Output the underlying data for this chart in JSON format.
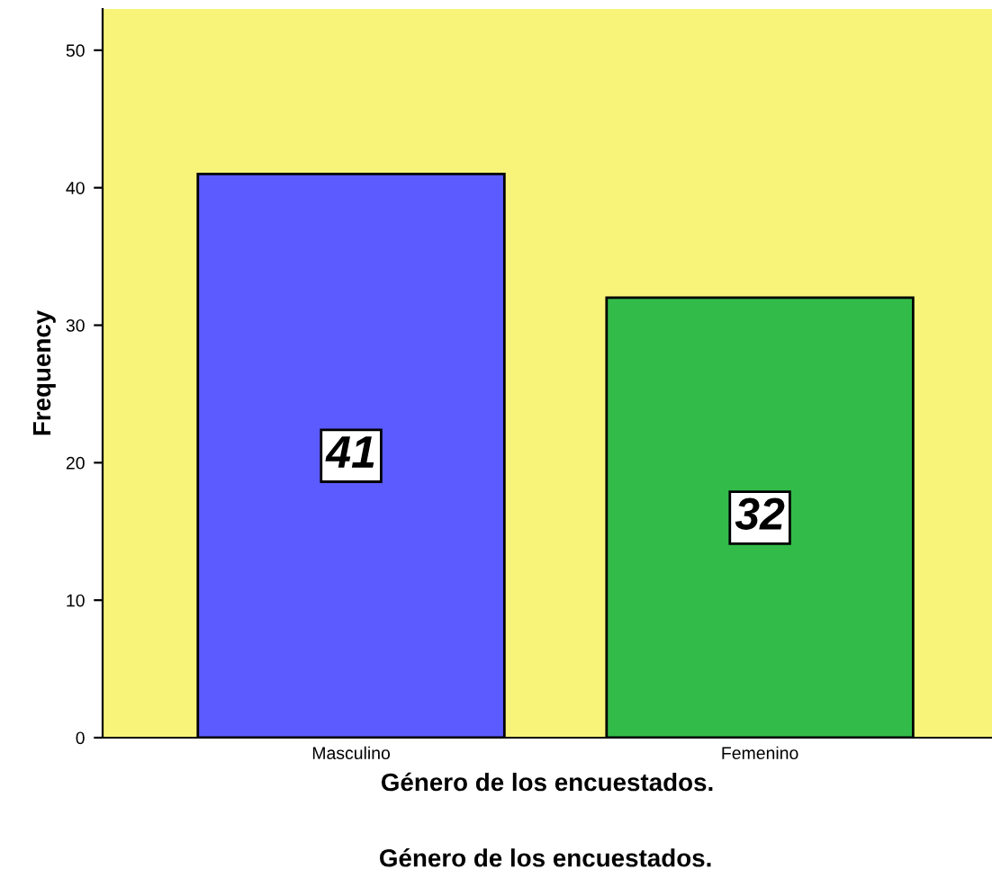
{
  "chart_data": {
    "type": "bar",
    "title": "Género de los encuestados.",
    "xlabel": "Género de los encuestados.",
    "ylabel": "Frequency",
    "categories": [
      "Masculino",
      "Femenino"
    ],
    "values": [
      41,
      32
    ],
    "colors": [
      "#5b5bff",
      "#33bb4a"
    ],
    "ylim": [
      0,
      53
    ],
    "yticks": [
      0,
      10,
      20,
      30,
      40,
      50
    ],
    "grid": false,
    "legend": false,
    "data_labels": true
  }
}
